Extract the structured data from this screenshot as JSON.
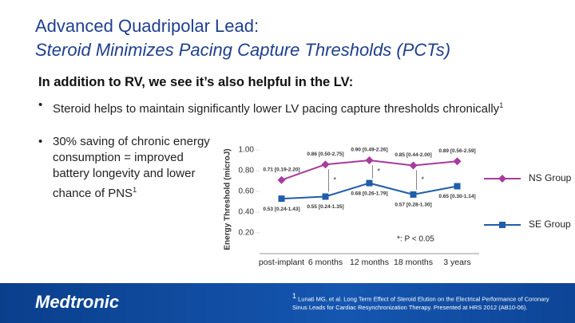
{
  "title": "Advanced Quadripolar Lead:",
  "subtitle": "Steroid Minimizes Pacing Capture Thresholds (PCTs)",
  "heading": "In addition to RV, we see it’s also helpful in the LV:",
  "bullets": [
    {
      "text": "Steroid helps to maintain significantly lower LV pacing capture thresholds chronically",
      "ref": "1"
    },
    {
      "text": "30% saving of chronic energy consumption = improved battery longevity and lower chance of PNS",
      "ref": "1"
    }
  ],
  "logo": "Medtronic",
  "footnote": {
    "ref": "1",
    "text": "Lunati MG, et al. Long Term Effect of Steroid Elution on the Electrical Performance of Coronary Sinus Leads for Cardiac Resynchronization Therapy. Presented at HRS 2012 (AB10-06)."
  },
  "chart_data": {
    "type": "line",
    "y_label": "Energy Threshold (microJ)",
    "categories": [
      "post-implant",
      "6 months",
      "12 months",
      "18 months",
      "3 years"
    ],
    "series": [
      {
        "name": "NS Group",
        "color": "#a83b9c",
        "marker": "diamond",
        "values": [
          0.71,
          0.86,
          0.9,
          0.85,
          0.89
        ],
        "value_labels": [
          "0.71 [0.19-2.20]",
          "0.86 [0.50-2.75]",
          "0.90 [0.49-2.26]",
          "0.85 [0.44-2.00]",
          "0.89 [0.56-2.59]"
        ]
      },
      {
        "name": "SE Group",
        "color": "#1f5ea8",
        "marker": "square",
        "values": [
          0.53,
          0.55,
          0.68,
          0.57,
          0.65
        ],
        "value_labels": [
          "0.53 [0.24-1.43]",
          "0.55 [0.24-1.35]",
          "0.68 [0.26-1.79]",
          "0.57 [0.28-1.30]",
          "0.65 [0.30-1.14]"
        ]
      }
    ],
    "ylim": [
      0,
      1.0
    ],
    "yticks": [
      {
        "value": 0.2,
        "label": "0.20"
      },
      {
        "value": 0.4,
        "label": "0.40"
      },
      {
        "value": 0.6,
        "label": "0.60"
      },
      {
        "value": 0.8,
        "label": "0.80"
      },
      {
        "value": 1.0,
        "label": "1.00"
      }
    ],
    "significance_mark": "*",
    "significance_note": "*: P < 0.05",
    "legend": "right"
  }
}
